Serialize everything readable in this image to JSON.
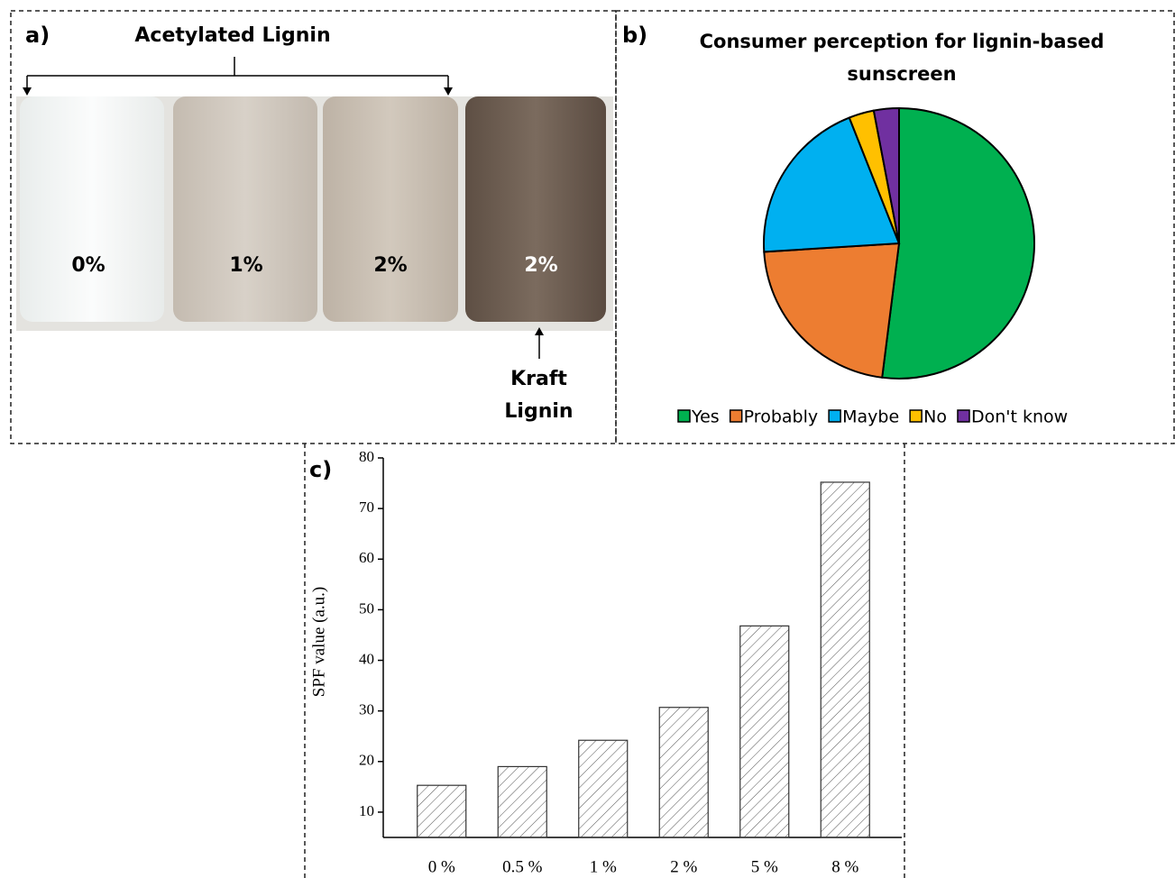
{
  "panel_a": {
    "panel_label": "a)",
    "bracket_label": "Acetylated Lignin",
    "vial_labels": [
      "0%",
      "1%",
      "2%",
      "2%"
    ],
    "arrow_label": "Kraft Lignin"
  },
  "chart_data": [
    {
      "type": "pie",
      "panel_label": "b)",
      "title": "Consumer perception for lignin-based sunscreen",
      "categories": [
        "Yes",
        "Probably",
        "Maybe",
        "No",
        "Don't know"
      ],
      "values": [
        52,
        22,
        20,
        3,
        3
      ],
      "colors": [
        "#00b050",
        "#ed7d31",
        "#00b0f0",
        "#ffc000",
        "#7030a0"
      ],
      "legend": "bottom"
    },
    {
      "type": "bar",
      "panel_label": "c)",
      "ylabel": "SPF value (a.u.)",
      "categories": [
        "0 %",
        "0.5 %",
        "1 %",
        "2 %",
        "5 %",
        "8 %"
      ],
      "values": [
        15.3,
        19,
        24.2,
        30.7,
        46.8,
        75.2
      ],
      "ylim": [
        5,
        80
      ],
      "yticks": [
        10,
        20,
        30,
        40,
        50,
        60,
        70,
        80
      ],
      "pattern": "hatch"
    }
  ]
}
